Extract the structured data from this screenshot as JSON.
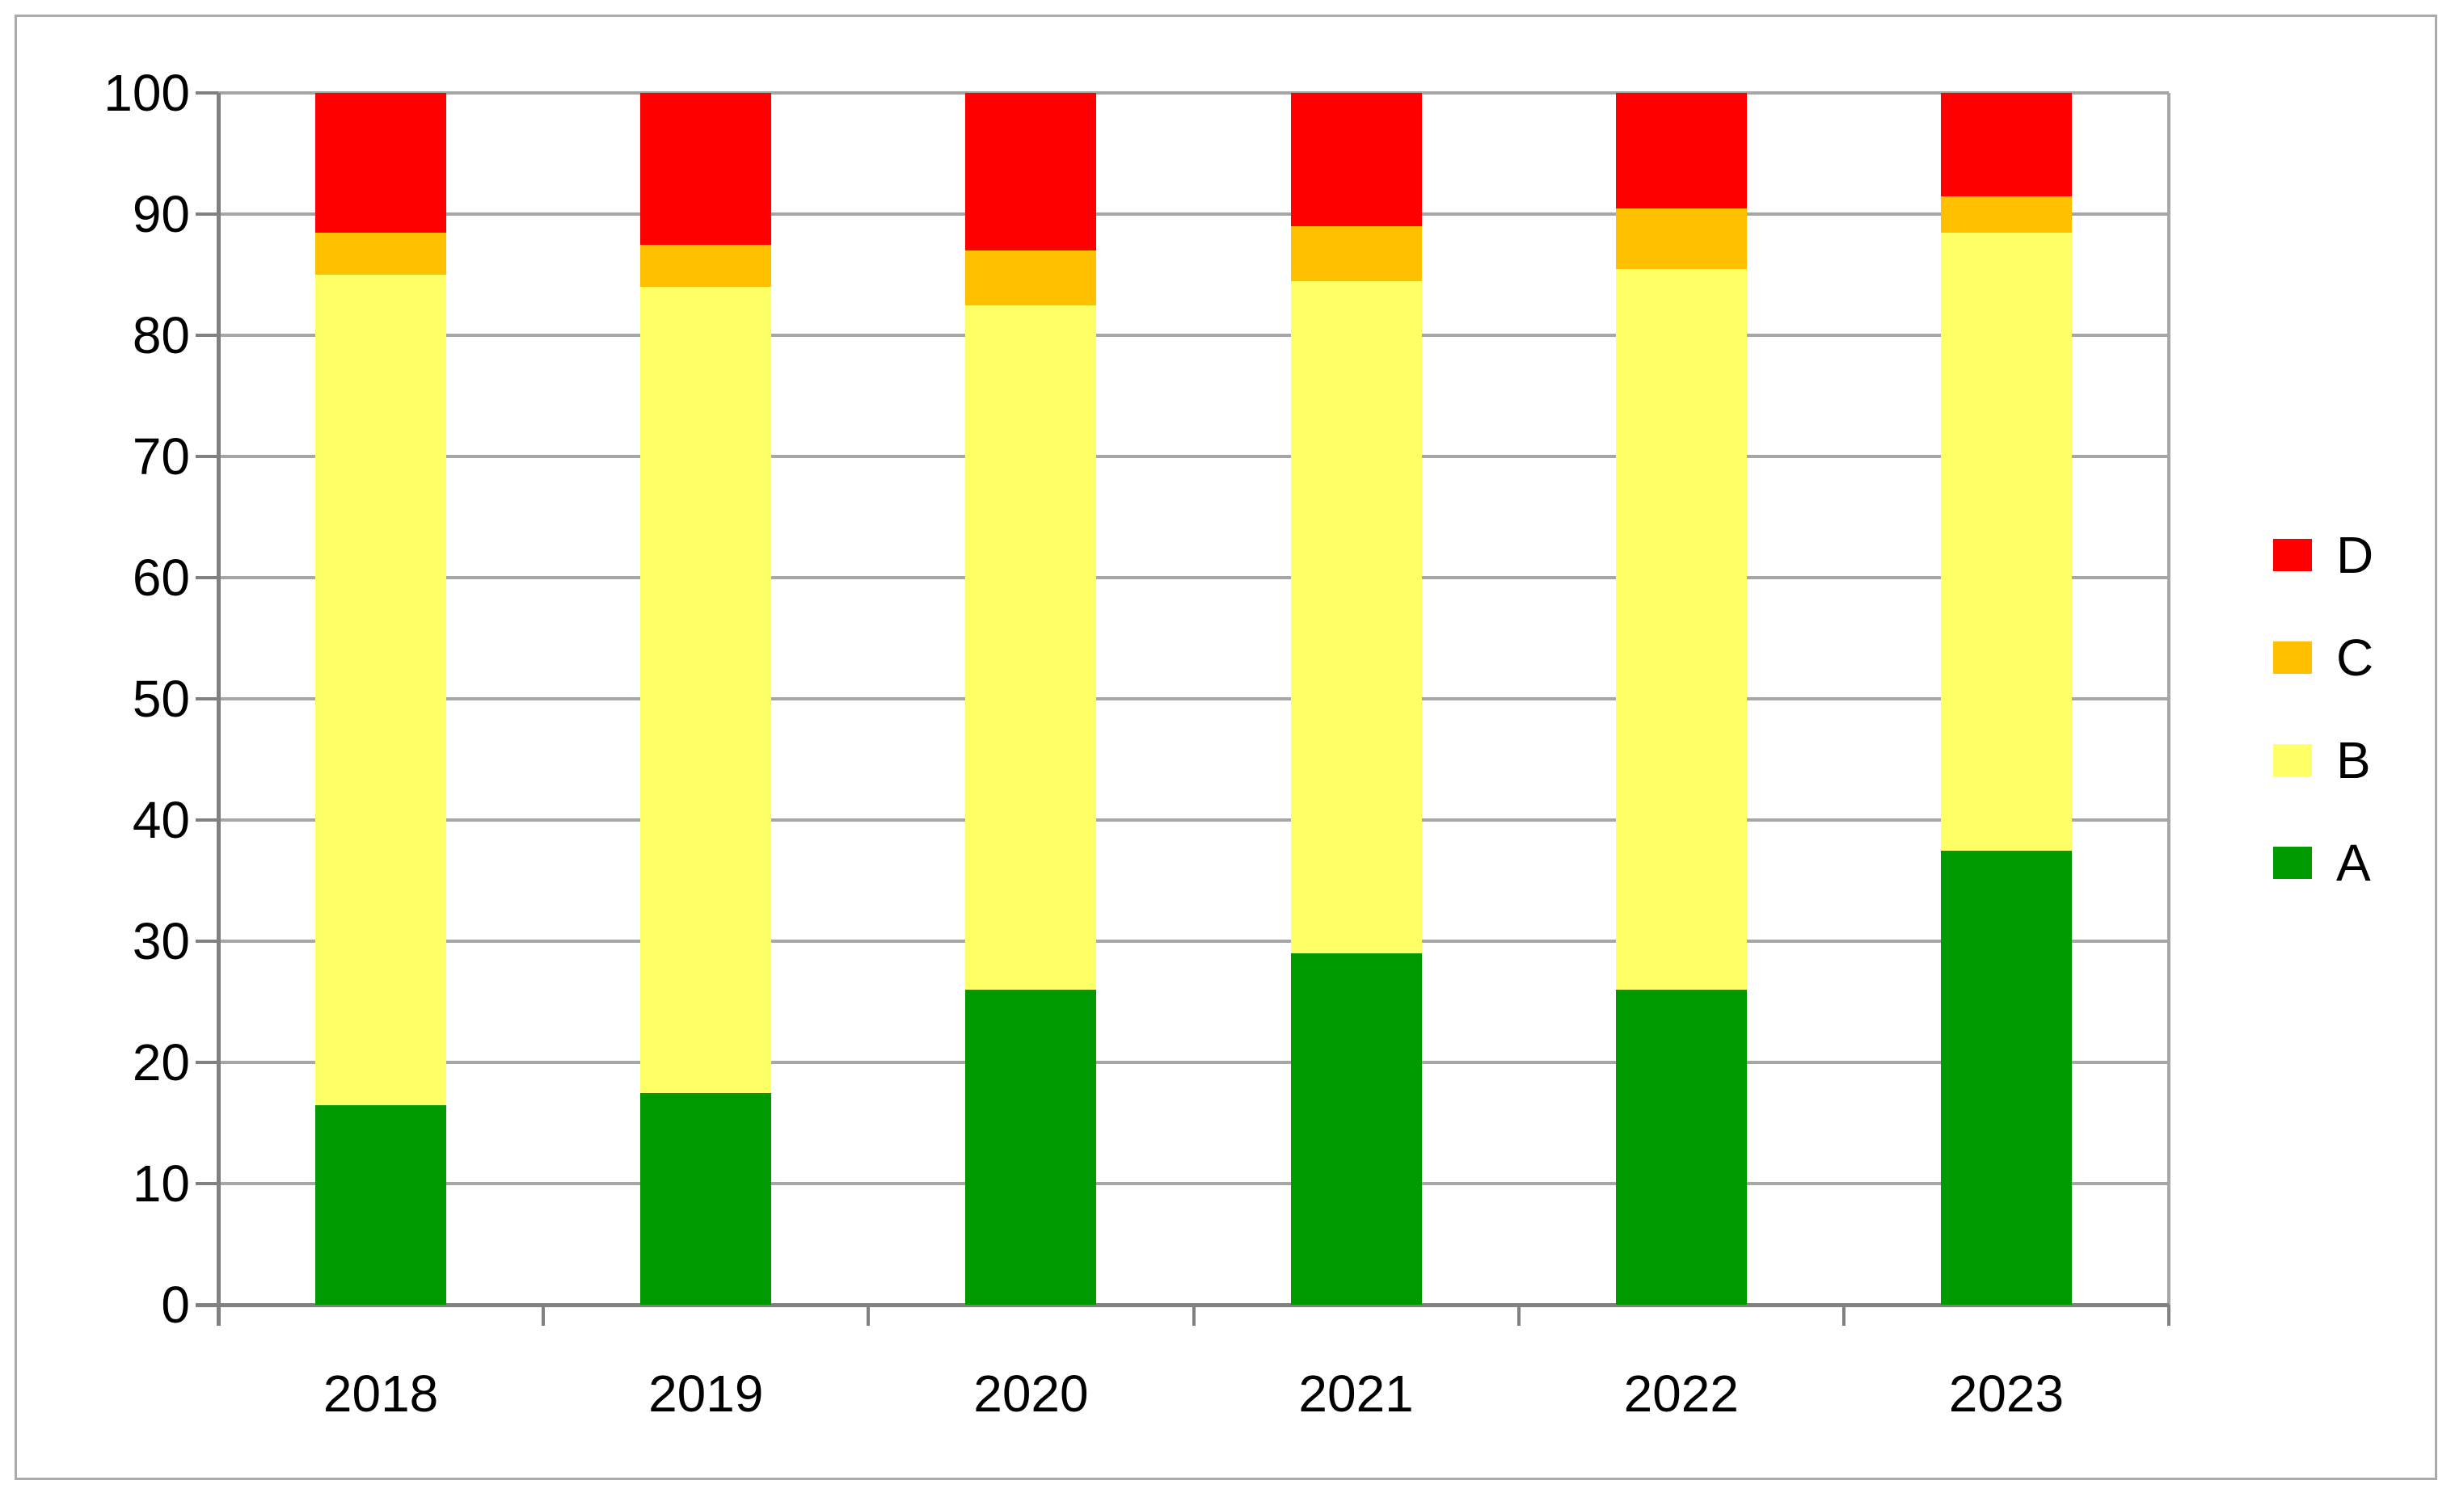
{
  "chart_data": {
    "type": "bar",
    "stacked": true,
    "title": "",
    "xlabel": "",
    "ylabel": "",
    "categories": [
      "2018",
      "2019",
      "2020",
      "2021",
      "2022",
      "2023"
    ],
    "series": [
      {
        "name": "A",
        "color": "#009900",
        "values": [
          16.5,
          17.5,
          26,
          29,
          26,
          37.5
        ]
      },
      {
        "name": "B",
        "color": "#FFFF66",
        "values": [
          68.5,
          66.5,
          56.5,
          55.5,
          59.5,
          51
        ]
      },
      {
        "name": "C",
        "color": "#FFC000",
        "values": [
          3.5,
          3.5,
          4.5,
          4.5,
          5,
          3
        ]
      },
      {
        "name": "D",
        "color": "#FF0000",
        "values": [
          11.5,
          12.5,
          13,
          11,
          9.5,
          8.5
        ]
      }
    ],
    "ylim": [
      0,
      100
    ],
    "ytick_step": 10,
    "ytick_labels": [
      "0",
      "10",
      "20",
      "30",
      "40",
      "50",
      "60",
      "70",
      "80",
      "90",
      "100"
    ],
    "grid": true,
    "legend_position": "right",
    "legend_order": [
      "D",
      "C",
      "B",
      "A"
    ]
  }
}
